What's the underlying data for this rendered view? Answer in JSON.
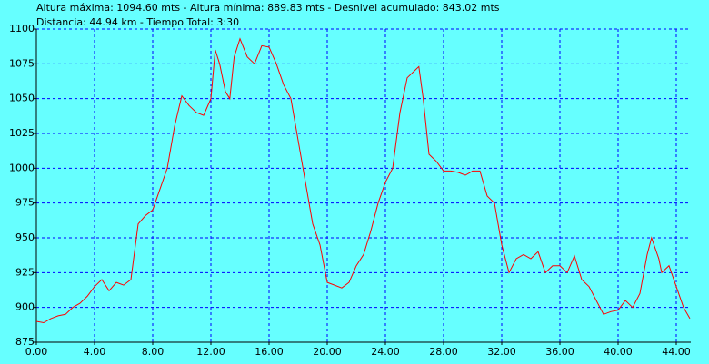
{
  "chart_data": {
    "type": "line",
    "title": "Altura máxima: 1094.60 mts - Altura mínima: 889.83 mts - Desnivel acumulado: 843.02 mts",
    "subtitle": "Distancia: 44.94 km - Tiempo Total: 3:30",
    "x": [
      0,
      0.5,
      1,
      1.5,
      2,
      2.5,
      3,
      3.5,
      4,
      4.5,
      5,
      5.5,
      6,
      6.5,
      7,
      7.5,
      8,
      8.5,
      9,
      9.5,
      10,
      10.5,
      11,
      11.5,
      12,
      12.3,
      12.6,
      13,
      13.3,
      13.6,
      14,
      14.5,
      15,
      15.5,
      16,
      16.5,
      17,
      17.5,
      18,
      18.5,
      19,
      19.5,
      20,
      20.5,
      21,
      21.5,
      22,
      22.5,
      23,
      23.5,
      24,
      24.5,
      25,
      25.5,
      26,
      26.3,
      26.6,
      27,
      27.5,
      28,
      28.5,
      29,
      29.5,
      30,
      30.5,
      31,
      31.5,
      32,
      32.5,
      33,
      33.5,
      34,
      34.5,
      35,
      35.5,
      36,
      36.5,
      37,
      37.5,
      38,
      38.5,
      39,
      39.5,
      40,
      40.5,
      41,
      41.5,
      42,
      42.3,
      42.8,
      43,
      43.5,
      44,
      44.5,
      44.94
    ],
    "series": [
      {
        "name": "Altura",
        "color": "#ff0000",
        "values": [
          890,
          889,
          892,
          894,
          895,
          900,
          903,
          908,
          915,
          920,
          912,
          918,
          916,
          920,
          960,
          966,
          970,
          985,
          1000,
          1030,
          1052,
          1045,
          1040,
          1038,
          1050,
          1085,
          1075,
          1055,
          1050,
          1080,
          1093,
          1080,
          1075,
          1088,
          1087,
          1075,
          1060,
          1050,
          1020,
          990,
          960,
          945,
          918,
          916,
          914,
          918,
          930,
          938,
          955,
          975,
          990,
          1000,
          1040,
          1065,
          1070,
          1073,
          1050,
          1010,
          1005,
          998,
          998,
          997,
          995,
          998,
          998,
          980,
          975,
          945,
          925,
          935,
          938,
          935,
          940,
          925,
          930,
          930,
          925,
          937,
          920,
          915,
          905,
          895,
          897,
          898,
          905,
          900,
          910,
          938,
          950,
          935,
          925,
          930,
          915,
          900,
          892
        ]
      }
    ],
    "xlim": [
      0,
      45
    ],
    "ylim": [
      875,
      1100
    ],
    "xticks": [
      {
        "value": 0,
        "label": "0.00"
      },
      {
        "value": 4,
        "label": "4.00"
      },
      {
        "value": 8,
        "label": "8.00"
      },
      {
        "value": 12,
        "label": "12.00"
      },
      {
        "value": 16,
        "label": "16.00"
      },
      {
        "value": 20,
        "label": "20.00"
      },
      {
        "value": 24,
        "label": "24.00"
      },
      {
        "value": 28,
        "label": "28.00"
      },
      {
        "value": 32,
        "label": "32.00"
      },
      {
        "value": 36,
        "label": "36.00"
      },
      {
        "value": 40,
        "label": "40.00"
      },
      {
        "value": 44,
        "label": "44.00"
      }
    ],
    "yticks": [
      875,
      900,
      925,
      950,
      975,
      1000,
      1025,
      1050,
      1075,
      1100
    ],
    "grid": true,
    "grid_color": "#0000ff",
    "background": "#66ffff"
  }
}
